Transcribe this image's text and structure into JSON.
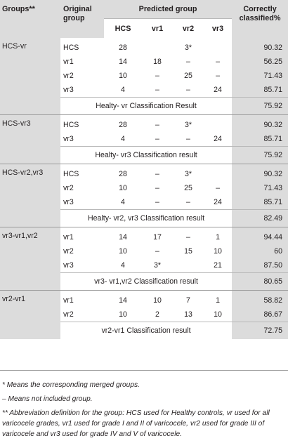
{
  "header": {
    "groups": "Groups**",
    "original_line1": "Original",
    "original_line2": "group",
    "predicted": "Predicted group",
    "sub": [
      "HCS",
      "vr1",
      "vr2",
      "vr3"
    ],
    "correct_line1": "Correctly",
    "correct_line2": "classified%"
  },
  "sections": [
    {
      "group": "HCS-vr",
      "rows": [
        {
          "orig": "HCS",
          "hcs": "28",
          "vr1": "",
          "vr2": "3*",
          "vr3": "",
          "pct": "90.32"
        },
        {
          "orig": "vr1",
          "hcs": "14",
          "vr1": "18",
          "vr2": "–",
          "vr3": "–",
          "pct": "56.25"
        },
        {
          "orig": "vr2",
          "hcs": "10",
          "vr1": "–",
          "vr2": "25",
          "vr3": "–",
          "pct": "71.43"
        },
        {
          "orig": "vr3",
          "hcs": "4",
          "vr1": "–",
          "vr2": "–",
          "vr3": "24",
          "pct": "85.71"
        }
      ],
      "result_label": "Healty- vr Classification Result",
      "result_value": "75.92"
    },
    {
      "group": "HCS-vr3",
      "rows": [
        {
          "orig": "HCS",
          "hcs": "28",
          "vr1": "–",
          "vr2": "3*",
          "vr3": "",
          "pct": "90.32"
        },
        {
          "orig": "vr3",
          "hcs": "4",
          "vr1": "–",
          "vr2": "–",
          "vr3": "24",
          "pct": "85.71"
        }
      ],
      "result_label": "Healty- vr3 Classification result",
      "result_value": "75.92"
    },
    {
      "group": "HCS-vr2,vr3",
      "rows": [
        {
          "orig": "HCS",
          "hcs": "28",
          "vr1": "–",
          "vr2": "3*",
          "vr3": "",
          "pct": "90.32"
        },
        {
          "orig": "vr2",
          "hcs": "10",
          "vr1": "–",
          "vr2": "25",
          "vr3": "–",
          "pct": "71.43"
        },
        {
          "orig": "vr3",
          "hcs": "4",
          "vr1": "–",
          "vr2": "–",
          "vr3": "24",
          "pct": "85.71"
        }
      ],
      "result_label": "Healty- vr2, vr3 Classification result",
      "result_value": "82.49"
    },
    {
      "group": "vr3-vr1,vr2",
      "rows": [
        {
          "orig": "vr1",
          "hcs": "14",
          "vr1": "17",
          "vr2": "–",
          "vr3": "1",
          "pct": "94.44"
        },
        {
          "orig": "vr2",
          "hcs": "10",
          "vr1": "–",
          "vr2": "15",
          "vr3": "10",
          "pct": "60"
        },
        {
          "orig": "vr3",
          "hcs": "4",
          "vr1": "3*",
          "vr2": "",
          "vr3": "21",
          "pct": "87.50"
        }
      ],
      "result_label": "vr3- vr1,vr2 Classification result",
      "result_value": "80.65"
    },
    {
      "group": "vr2-vr1",
      "rows": [
        {
          "orig": "vr1",
          "hcs": "14",
          "vr1": "10",
          "vr2": "7",
          "vr3": "1",
          "pct": "58.82"
        },
        {
          "orig": "vr2",
          "hcs": "10",
          "vr1": "2",
          "vr2": "13",
          "vr3": "10",
          "pct": "86.67"
        }
      ],
      "result_label": "vr2-vr1 Classification result",
      "result_value": "72.75"
    }
  ],
  "notes": [
    "* Means the corresponding merged groups.",
    "– Means not included group.",
    "** Abbreviation definition for the group: HCS used for Healthy controls, vr used for all varicocele grades, vr1 used for grade I and II of varicocele, vr2 used for grade III of varicocele and vr3 used for grade IV and V of varicocele."
  ]
}
